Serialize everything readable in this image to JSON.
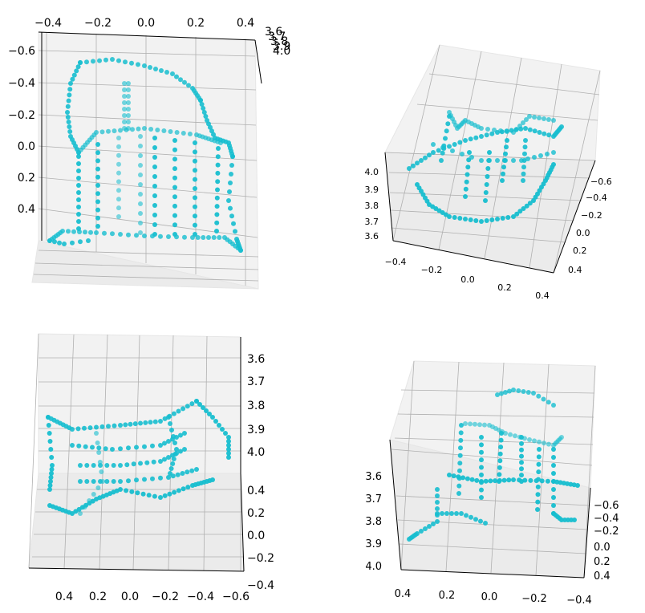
{
  "chart_data": [
    {
      "type": "scatter",
      "view": "front",
      "color": "#17becf",
      "x_ticks": [
        "−0.4",
        "−0.2",
        "0.0",
        "0.2",
        "0.4"
      ],
      "y_ticks": [
        "−0.6",
        "−0.4",
        "−0.2",
        "0.0",
        "0.2",
        "0.4"
      ],
      "z_ticks": [
        "3.6",
        "3.7",
        "3.8",
        "3.9",
        "4.0"
      ],
      "xlim": [
        -0.45,
        0.45
      ],
      "ylim": [
        -0.65,
        0.55
      ],
      "zlim": [
        3.55,
        4.05
      ],
      "grid": true
    },
    {
      "type": "scatter",
      "view": "top-oblique",
      "color": "#17becf",
      "x_ticks": [
        "−0.4",
        "−0.2",
        "0.0",
        "0.2",
        "0.4"
      ],
      "y_ticks": [
        "−0.6",
        "−0.4",
        "−0.2",
        "0.0",
        "0.2",
        "0.4"
      ],
      "z_ticks": [
        "4.0",
        "3.9",
        "3.8",
        "3.7",
        "3.6"
      ],
      "xlim": [
        -0.45,
        0.45
      ],
      "ylim": [
        -0.65,
        0.55
      ],
      "zlim": [
        3.55,
        4.05
      ],
      "grid": true
    },
    {
      "type": "scatter",
      "view": "side",
      "color": "#17becf",
      "x_ticks": [
        "0.4",
        "0.2",
        "0.0",
        "−0.2",
        "−0.4",
        "−0.6"
      ],
      "y_ticks": [
        "0.4",
        "0.2",
        "0.0",
        "−0.2",
        "−0.4"
      ],
      "z_ticks": [
        "3.6",
        "3.7",
        "3.8",
        "3.9",
        "4.0"
      ],
      "xlim": [
        -0.65,
        0.55
      ],
      "ylim": [
        -0.45,
        0.45
      ],
      "zlim": [
        3.55,
        4.05
      ],
      "grid": true
    },
    {
      "type": "scatter",
      "view": "rear-oblique",
      "color": "#17becf",
      "x_ticks": [
        "0.4",
        "0.2",
        "0.0",
        "−0.2",
        "−0.4"
      ],
      "y_ticks": [
        "−0.6",
        "−0.4",
        "−0.2",
        "0.0",
        "0.2",
        "0.4"
      ],
      "z_ticks": [
        "3.6",
        "3.7",
        "3.8",
        "3.9",
        "4.0"
      ],
      "xlim": [
        -0.45,
        0.45
      ],
      "ylim": [
        -0.65,
        0.55
      ],
      "zlim": [
        3.55,
        4.05
      ],
      "grid": true
    }
  ]
}
